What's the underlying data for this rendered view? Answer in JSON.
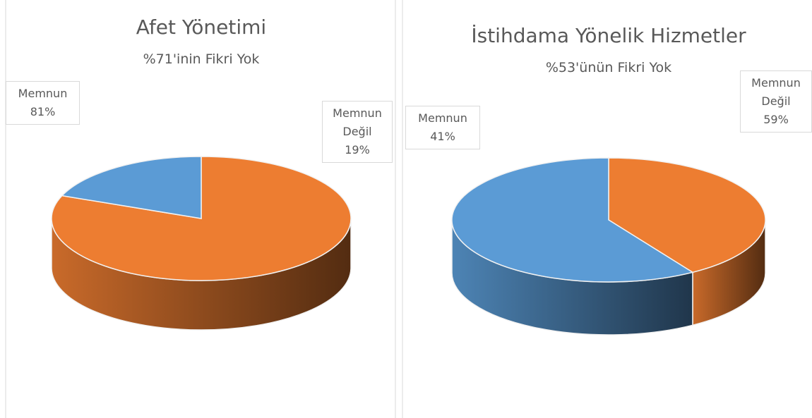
{
  "chart_data": [
    {
      "type": "pie",
      "title": "Afet Yönetimi",
      "subtitle": "%71'inin Fikri Yok",
      "categories": [
        "Memnun",
        "Memnun Değil"
      ],
      "values": [
        81,
        19
      ],
      "value_labels": [
        "81%",
        "19%"
      ],
      "colors": [
        "#ed7d31",
        "#5b9bd5"
      ]
    },
    {
      "type": "pie",
      "title": "İstihdama Yönelik Hizmetler",
      "subtitle": "%53'ünün Fikri Yok",
      "categories": [
        "Memnun",
        "Memnun Değil"
      ],
      "values": [
        41,
        59
      ],
      "value_labels": [
        "41%",
        "59%"
      ],
      "colors": [
        "#ed7d31",
        "#5b9bd5"
      ]
    }
  ]
}
